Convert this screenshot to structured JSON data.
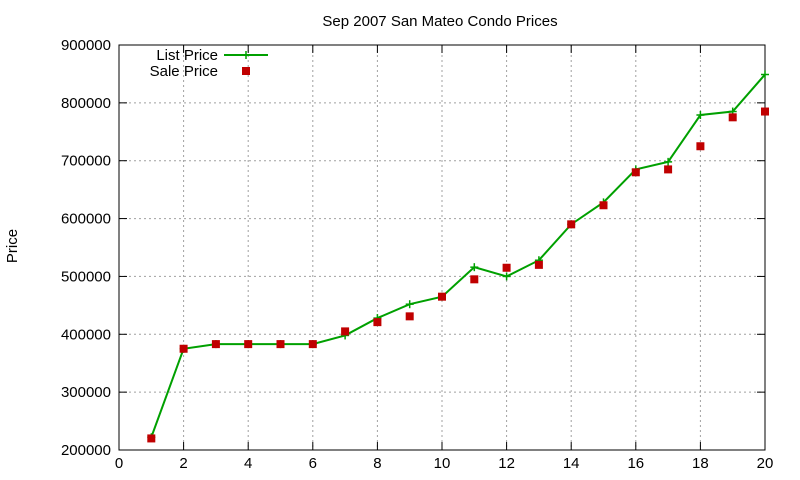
{
  "chart_data": {
    "type": "line",
    "title": "Sep 2007 San Mateo Condo Prices",
    "xlabel": "",
    "ylabel": "Price",
    "xlim": [
      0,
      20
    ],
    "ylim": [
      200000,
      900000
    ],
    "x_ticks": [
      0,
      2,
      4,
      6,
      8,
      10,
      12,
      14,
      16,
      18,
      20
    ],
    "y_ticks": [
      200000,
      300000,
      400000,
      500000,
      600000,
      700000,
      800000,
      900000
    ],
    "x_tick_labels": [
      "0",
      "2",
      "4",
      "6",
      "8",
      "10",
      "12",
      "14",
      "16",
      "18",
      "20"
    ],
    "y_tick_labels": [
      "200000",
      "300000",
      "400000",
      "500000",
      "600000",
      "700000",
      "800000",
      "900000"
    ],
    "grid": true,
    "legend_position": "top-left",
    "x": [
      1,
      2,
      3,
      4,
      5,
      6,
      7,
      8,
      9,
      10,
      11,
      12,
      13,
      14,
      15,
      16,
      17,
      18,
      19,
      20
    ],
    "series": [
      {
        "name": "List Price",
        "style": "line-plus",
        "color": "#00a000",
        "values": [
          222000,
          375000,
          383000,
          383000,
          383000,
          383000,
          398000,
          428000,
          452000,
          465000,
          516000,
          500000,
          528000,
          590000,
          628000,
          685000,
          698000,
          779000,
          785000,
          849000
        ]
      },
      {
        "name": "Sale Price",
        "style": "square-points",
        "color": "#c00000",
        "values": [
          220000,
          375000,
          383000,
          383000,
          383000,
          383000,
          405000,
          421000,
          431000,
          465000,
          495000,
          515000,
          520000,
          590000,
          623000,
          680000,
          685000,
          725000,
          775000,
          785000
        ]
      }
    ]
  }
}
